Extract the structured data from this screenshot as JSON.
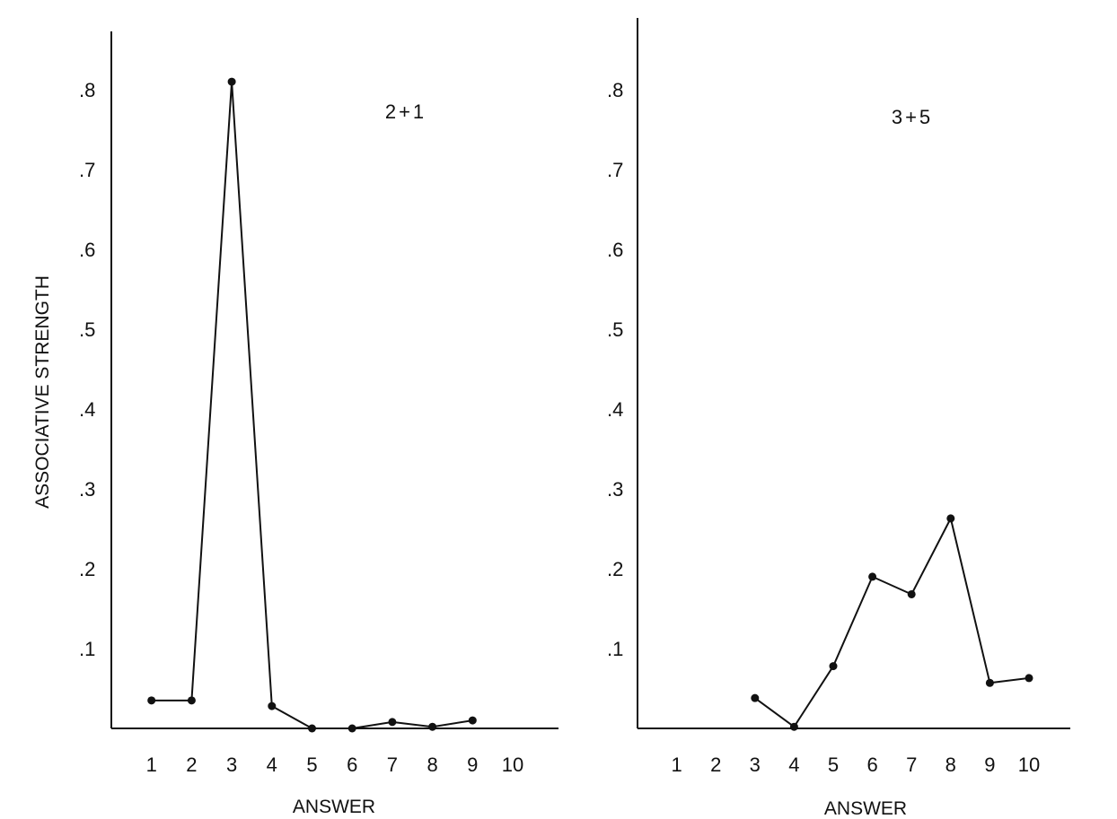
{
  "chart_data": [
    {
      "type": "line",
      "title": "2+1",
      "xlabel": "ANSWER",
      "ylabel": "ASSOCIATIVE STRENGTH",
      "x_tick_labels": [
        "1",
        "2",
        "3",
        "4",
        "5",
        "6",
        "7",
        "8",
        "9",
        "10"
      ],
      "y_tick_labels": [
        ".1",
        ".2",
        ".3",
        ".4",
        ".5",
        ".6",
        ".7",
        ".8"
      ],
      "xlim": [
        0,
        11.5
      ],
      "ylim": [
        0,
        0.9
      ],
      "series": [
        {
          "x": [
            1,
            2,
            3,
            4,
            5,
            6,
            7,
            8,
            9
          ],
          "y": [
            0.035,
            0.035,
            0.81,
            0.028,
            0,
            0,
            0.008,
            0.002,
            0.01
          ]
        }
      ]
    },
    {
      "type": "line",
      "title": "3+5",
      "xlabel": "ANSWER",
      "ylabel": "",
      "x_tick_labels": [
        "1",
        "2",
        "3",
        "4",
        "5",
        "6",
        "7",
        "8",
        "9",
        "10"
      ],
      "y_tick_labels": [
        ".1",
        ".2",
        ".3",
        ".4",
        ".5",
        ".6",
        ".7",
        ".8"
      ],
      "xlim": [
        0,
        11.1
      ],
      "ylim": [
        0,
        0.9
      ],
      "series": [
        {
          "x": [
            3,
            4,
            5,
            6,
            7,
            8,
            9,
            10
          ],
          "y": [
            0.038,
            0.002,
            0.078,
            0.19,
            0.168,
            0.263,
            0.057,
            0.063
          ]
        }
      ]
    }
  ]
}
